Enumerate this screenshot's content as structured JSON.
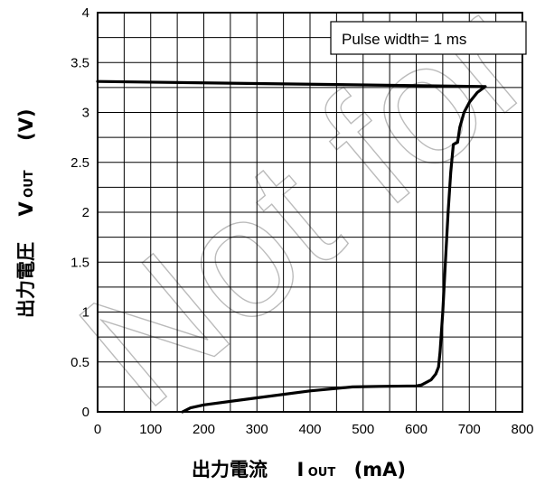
{
  "chart_data": {
    "type": "line",
    "annotation": "Pulse width= 1 ms",
    "watermark": "Not for",
    "xlabel": {
      "jp": "出力電流",
      "symbol": "I",
      "sub": "OUT",
      "unit": "(mA)"
    },
    "ylabel": {
      "jp": "出力電圧",
      "symbol": "V",
      "sub": "OUT",
      "unit": "(V)"
    },
    "xlim": [
      0,
      800
    ],
    "ylim": [
      0,
      4
    ],
    "x_ticks": [
      "0",
      "100",
      "200",
      "300",
      "400",
      "500",
      "600",
      "700",
      "800"
    ],
    "y_ticks": [
      "0",
      "0.5",
      "1",
      "1.5",
      "2",
      "2.5",
      "3",
      "3.5",
      "4"
    ],
    "grid": true,
    "series": [
      {
        "color": "#000000",
        "points": [
          [
            0,
            3.31
          ],
          [
            730,
            3.26
          ],
          [
            715,
            3.2
          ],
          [
            700,
            3.1
          ],
          [
            690,
            3.0
          ],
          [
            682,
            2.85
          ],
          [
            678,
            2.7
          ],
          [
            670,
            2.68
          ],
          [
            665,
            2.4
          ],
          [
            660,
            2.0
          ],
          [
            655,
            1.5
          ],
          [
            650,
            1.0
          ],
          [
            645,
            0.6
          ],
          [
            642,
            0.45
          ],
          [
            637,
            0.38
          ],
          [
            628,
            0.32
          ],
          [
            610,
            0.27
          ],
          [
            600,
            0.26
          ],
          [
            530,
            0.255
          ],
          [
            480,
            0.25
          ],
          [
            400,
            0.21
          ],
          [
            300,
            0.14
          ],
          [
            200,
            0.07
          ],
          [
            175,
            0.04
          ],
          [
            160,
            0.0
          ]
        ]
      }
    ]
  }
}
